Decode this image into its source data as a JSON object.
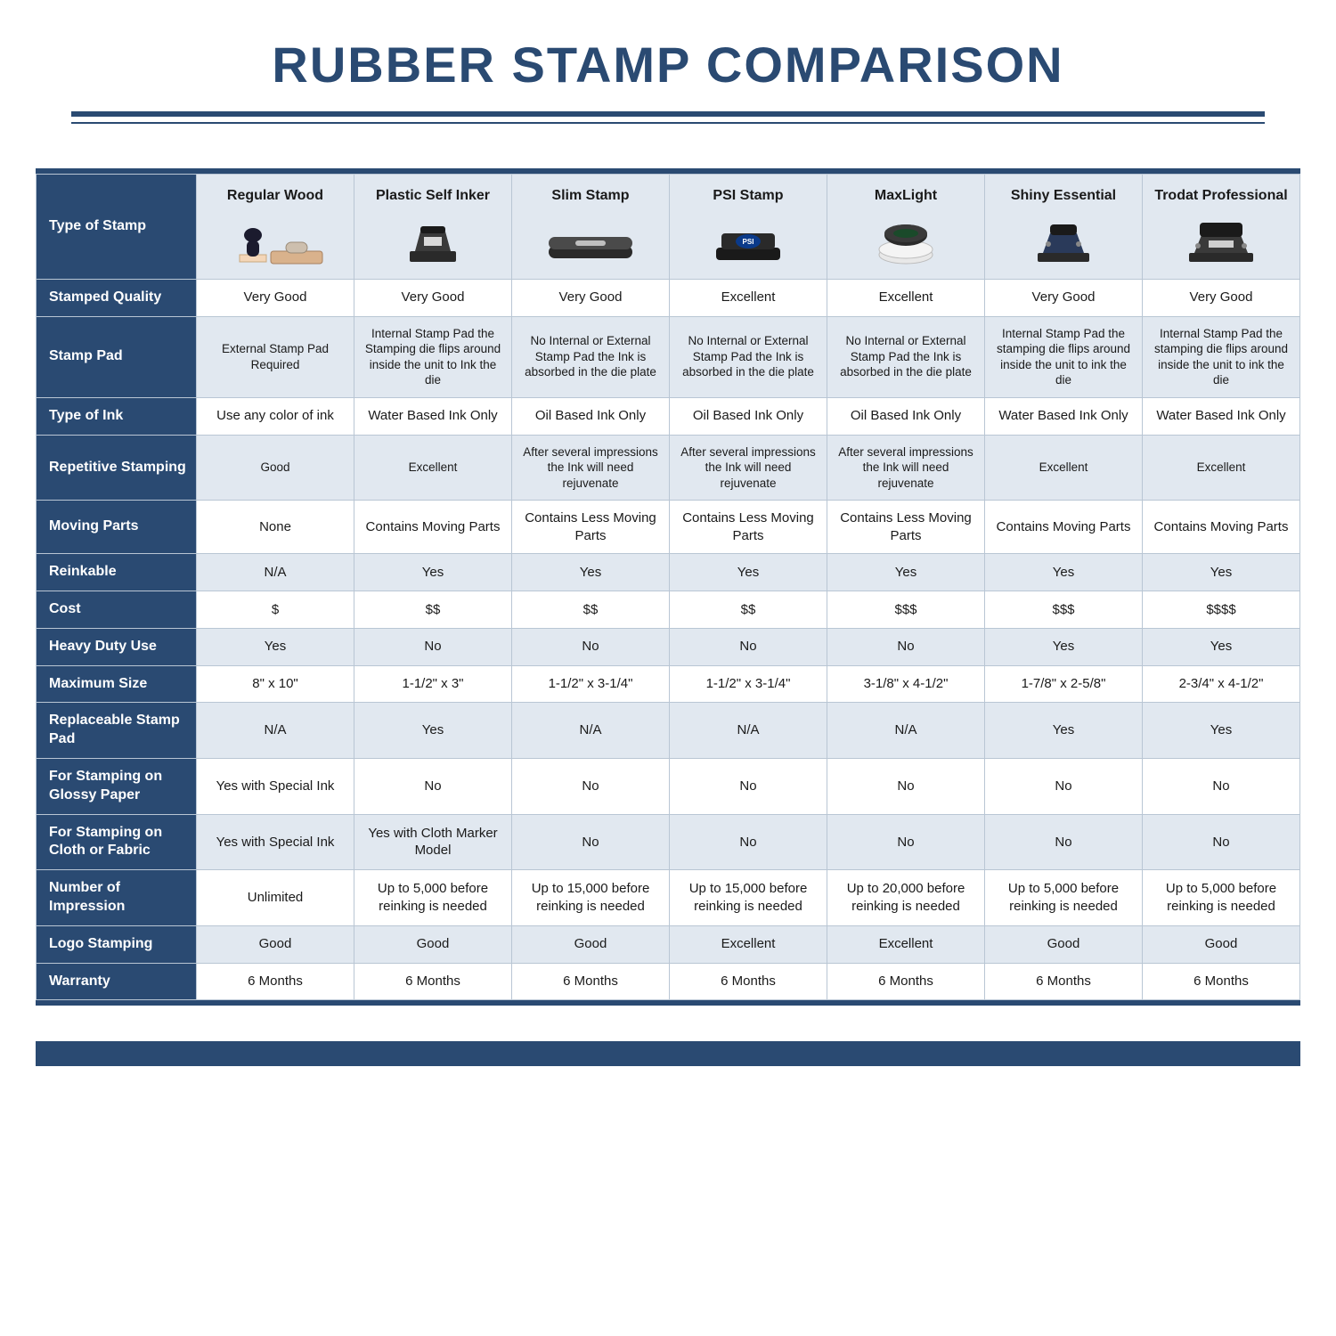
{
  "colors": {
    "brand": "#2a4a72",
    "header_bg": "#e1e8f0",
    "shade_bg": "#e1e8f0",
    "border": "#b9c6d4",
    "page_bg": "#ffffff",
    "text": "#1a1a1a",
    "row_head_text": "#ffffff"
  },
  "title": "RUBBER STAMP COMPARISON",
  "corner_label": "Type of Stamp",
  "columns": [
    {
      "label": "Regular Wood"
    },
    {
      "label": "Plastic Self Inker"
    },
    {
      "label": "Slim Stamp"
    },
    {
      "label": "PSI Stamp"
    },
    {
      "label": "MaxLight"
    },
    {
      "label": "Shiny Essential"
    },
    {
      "label": "Trodat Professional"
    }
  ],
  "rows": [
    {
      "label": "Stamped Quality",
      "shade": false,
      "cells": [
        "Very Good",
        "Very Good",
        "Very Good",
        "Excellent",
        "Excellent",
        "Very Good",
        "Very Good"
      ]
    },
    {
      "label": "Stamp Pad",
      "shade": true,
      "small": true,
      "cells": [
        "External Stamp Pad Required",
        "Internal Stamp Pad the Stamping die flips around inside the unit to Ink the die",
        "No Internal or External Stamp Pad the Ink is absorbed in the die plate",
        "No Internal or External Stamp Pad the Ink is absorbed in the die plate",
        "No Internal or External Stamp Pad the Ink is absorbed in the die plate",
        "Internal Stamp Pad the stamping die flips around inside the unit to ink the die",
        "Internal Stamp Pad the stamping die flips around inside the unit to ink the die"
      ]
    },
    {
      "label": "Type of Ink",
      "shade": false,
      "cells": [
        "Use any color of ink",
        "Water Based Ink Only",
        "Oil Based Ink Only",
        "Oil Based Ink Only",
        "Oil Based Ink Only",
        "Water Based Ink Only",
        "Water Based Ink Only"
      ]
    },
    {
      "label": "Repetitive Stamping",
      "shade": true,
      "small": true,
      "cells": [
        "Good",
        "Excellent",
        "After several impressions the Ink will need rejuvenate",
        "After several impressions the Ink will need rejuvenate",
        "After several impressions the Ink will need rejuvenate",
        "Excellent",
        "Excellent"
      ]
    },
    {
      "label": "Moving Parts",
      "shade": false,
      "cells": [
        "None",
        "Contains Moving Parts",
        "Contains Less Moving Parts",
        "Contains Less Moving Parts",
        "Contains Less Moving Parts",
        "Contains Moving Parts",
        "Contains Moving Parts"
      ]
    },
    {
      "label": "Reinkable",
      "shade": true,
      "cells": [
        "N/A",
        "Yes",
        "Yes",
        "Yes",
        "Yes",
        "Yes",
        "Yes"
      ]
    },
    {
      "label": "Cost",
      "shade": false,
      "cells": [
        "$",
        "$$",
        "$$",
        "$$",
        "$$$",
        "$$$",
        "$$$$"
      ]
    },
    {
      "label": "Heavy Duty Use",
      "shade": true,
      "cells": [
        "Yes",
        "No",
        "No",
        "No",
        "No",
        "Yes",
        "Yes"
      ]
    },
    {
      "label": "Maximum Size",
      "shade": false,
      "cells": [
        "8\" x 10\"",
        "1-1/2\" x 3\"",
        "1-1/2\" x 3-1/4\"",
        "1-1/2\" x 3-1/4\"",
        "3-1/8\" x 4-1/2\"",
        "1-7/8\" x 2-5/8\"",
        "2-3/4\" x 4-1/2\""
      ]
    },
    {
      "label": "Replaceable Stamp Pad",
      "shade": true,
      "cells": [
        "N/A",
        "Yes",
        "N/A",
        "N/A",
        "N/A",
        "Yes",
        "Yes"
      ]
    },
    {
      "label": "For Stamping on Glossy Paper",
      "shade": false,
      "cells": [
        "Yes with Special Ink",
        "No",
        "No",
        "No",
        "No",
        "No",
        "No"
      ]
    },
    {
      "label": "For Stamping on Cloth or Fabric",
      "shade": true,
      "cells": [
        "Yes with Special Ink",
        "Yes with Cloth Marker Model",
        "No",
        "No",
        "No",
        "No",
        "No"
      ]
    },
    {
      "label": "Number of Impression",
      "shade": false,
      "cells": [
        "Unlimited",
        "Up to 5,000 before reinking is needed",
        "Up to 15,000 before reinking is needed",
        "Up to 15,000 before reinking is needed",
        "Up to 20,000 before reinking is needed",
        "Up to 5,000 before reinking is needed",
        "Up to 5,000 before reinking is needed"
      ]
    },
    {
      "label": "Logo Stamping",
      "shade": true,
      "cells": [
        "Good",
        "Good",
        "Good",
        "Excellent",
        "Excellent",
        "Good",
        "Good"
      ]
    },
    {
      "label": "Warranty",
      "shade": false,
      "cells": [
        "6 Months",
        "6 Months",
        "6 Months",
        "6 Months",
        "6 Months",
        "6 Months",
        "6 Months"
      ]
    }
  ]
}
